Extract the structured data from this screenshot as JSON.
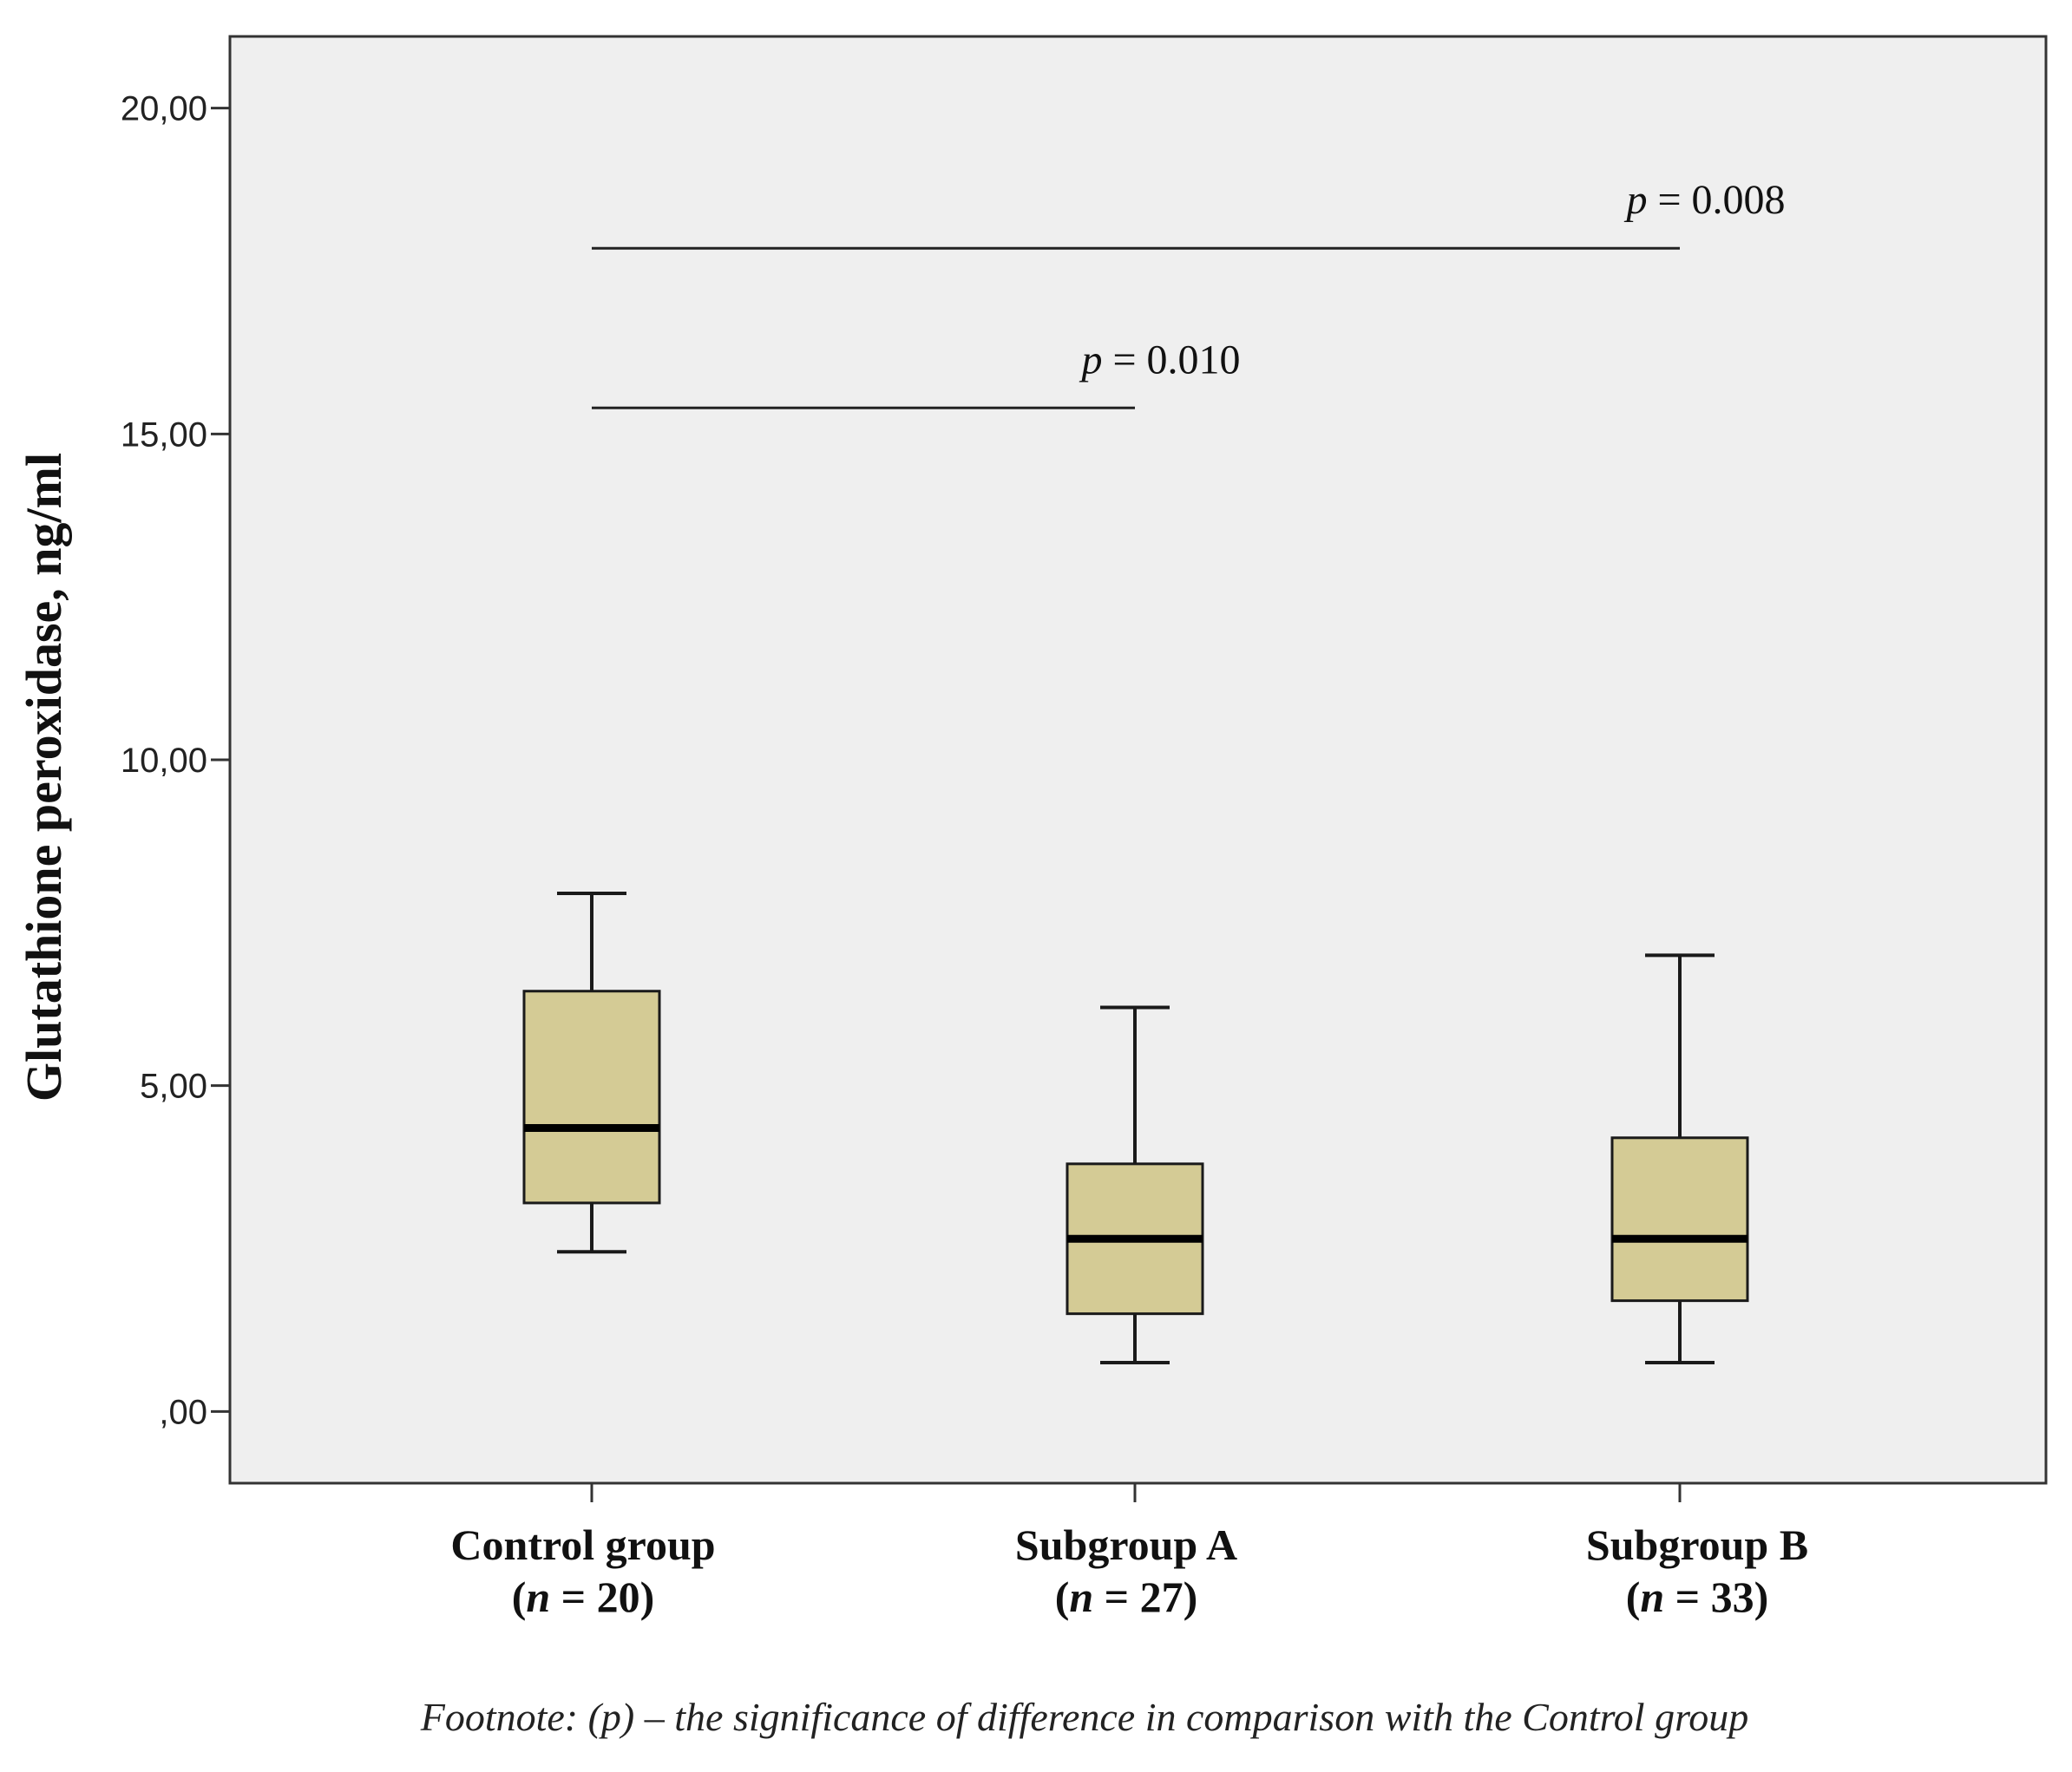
{
  "chart_data": {
    "type": "boxplot",
    "ylabel": "Glutathione peroxidase, ng/ml",
    "ylim": [
      -1.1,
      21.1
    ],
    "yticks": [
      0,
      5,
      10,
      15,
      20
    ],
    "ytick_labels": [
      ",00",
      "5,00",
      "10,00",
      "15,00",
      "20,00"
    ],
    "categories": [
      {
        "name": "Control group",
        "n_label": "(n = 20)",
        "n_prefix": "(",
        "n_letter": "n",
        "n_suffix": " = 20)"
      },
      {
        "name": "Subgroup A",
        "n_label": "(n = 27)",
        "n_prefix": "(",
        "n_letter": "n",
        "n_suffix": " = 27)"
      },
      {
        "name": "Subgroup B",
        "n_label": "(n = 33)",
        "n_prefix": "(",
        "n_letter": "n",
        "n_suffix": " = 33)"
      }
    ],
    "boxes": [
      {
        "category": "Control group",
        "whisker_low": 2.45,
        "q1": 3.2,
        "median": 4.35,
        "q3": 6.45,
        "whisker_high": 7.95
      },
      {
        "category": "Subgroup A",
        "whisker_low": 0.75,
        "q1": 1.5,
        "median": 2.65,
        "q3": 3.8,
        "whisker_high": 6.2
      },
      {
        "category": "Subgroup B",
        "whisker_low": 0.75,
        "q1": 1.7,
        "median": 2.65,
        "q3": 4.2,
        "whisker_high": 7.0
      }
    ],
    "significance": [
      {
        "from": 0,
        "to": 2,
        "y": 17.85,
        "letter": "p",
        "rest": " = 0.008",
        "label": "p = 0.008"
      },
      {
        "from": 0,
        "to": 1,
        "y": 15.4,
        "letter": "p",
        "rest": " = 0.010",
        "label": "p = 0.010"
      }
    ],
    "footnote": "Footnote:  (p) – the significance of difference in comparison with the Control group"
  },
  "colors": {
    "plot_bg": "#efefef",
    "box_fill": "#d4cb95",
    "box_stroke": "#1a1a1a",
    "axis": "#333333"
  }
}
